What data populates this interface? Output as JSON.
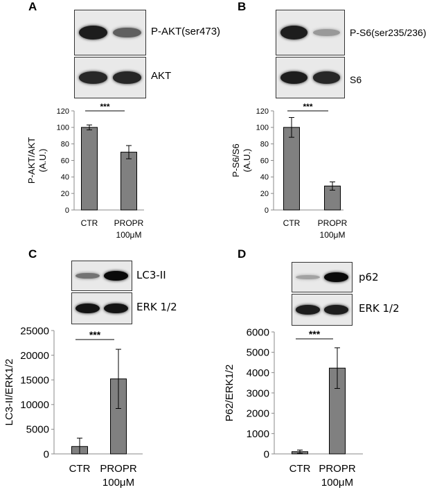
{
  "panels": [
    {
      "letter": "A",
      "blots": [
        {
          "label": "P-AKT(ser473)",
          "bands": [
            0.9,
            0.55
          ]
        },
        {
          "label": "AKT",
          "bands": [
            0.85,
            0.85
          ]
        }
      ],
      "significance": "***"
    },
    {
      "letter": "B",
      "blots": [
        {
          "label": "P-S6(ser235/236)",
          "bands": [
            0.9,
            0.25
          ]
        },
        {
          "label": "S6",
          "bands": [
            0.9,
            0.85
          ]
        }
      ],
      "significance": "***"
    },
    {
      "letter": "C",
      "blots": [
        {
          "label": "LC3-II",
          "bands": [
            0.45,
            1.0
          ]
        },
        {
          "label": "ERK 1/2",
          "bands": [
            0.95,
            0.95
          ]
        }
      ],
      "significance": "***"
    },
    {
      "letter": "D",
      "blots": [
        {
          "label": "p62",
          "bands": [
            0.2,
            1.0
          ]
        },
        {
          "label": "ERK 1/2",
          "bands": [
            0.9,
            0.9
          ]
        }
      ],
      "significance": "***"
    }
  ],
  "chart_data": [
    {
      "type": "bar",
      "categories": [
        "CTR",
        "PROPR\n100μM"
      ],
      "values": [
        100,
        70
      ],
      "errors": [
        3,
        8
      ],
      "ylabel": "P-AKT/AKT\n(A.U.)",
      "ylim": [
        0,
        120
      ],
      "yticks": [
        0,
        20,
        40,
        60,
        80,
        100,
        120
      ],
      "bar_color": "#808080"
    },
    {
      "type": "bar",
      "categories": [
        "CTR",
        "PROPR\n100μM"
      ],
      "values": [
        100,
        29
      ],
      "errors": [
        12,
        5
      ],
      "ylabel": "P-S6/S6\n(A.U.)",
      "ylim": [
        0,
        120
      ],
      "yticks": [
        0,
        20,
        40,
        60,
        80,
        100,
        120
      ],
      "bar_color": "#808080"
    },
    {
      "type": "bar",
      "categories": [
        "CTR",
        "PROPR\n100μM"
      ],
      "values": [
        1500,
        15200
      ],
      "errors": [
        1700,
        6000
      ],
      "ylabel": "LC3-II/ERK1/2",
      "ylim": [
        0,
        25000
      ],
      "yticks": [
        0,
        5000,
        10000,
        15000,
        20000,
        25000
      ],
      "bar_color": "#808080"
    },
    {
      "type": "bar",
      "categories": [
        "CTR",
        "PROPR\n100μM"
      ],
      "values": [
        110,
        4220
      ],
      "errors": [
        80,
        1000
      ],
      "ylabel": "P62/ERK1/2",
      "ylim": [
        0,
        6000
      ],
      "yticks": [
        0,
        1000,
        2000,
        3000,
        4000,
        5000,
        6000
      ],
      "bar_color": "#808080"
    }
  ]
}
